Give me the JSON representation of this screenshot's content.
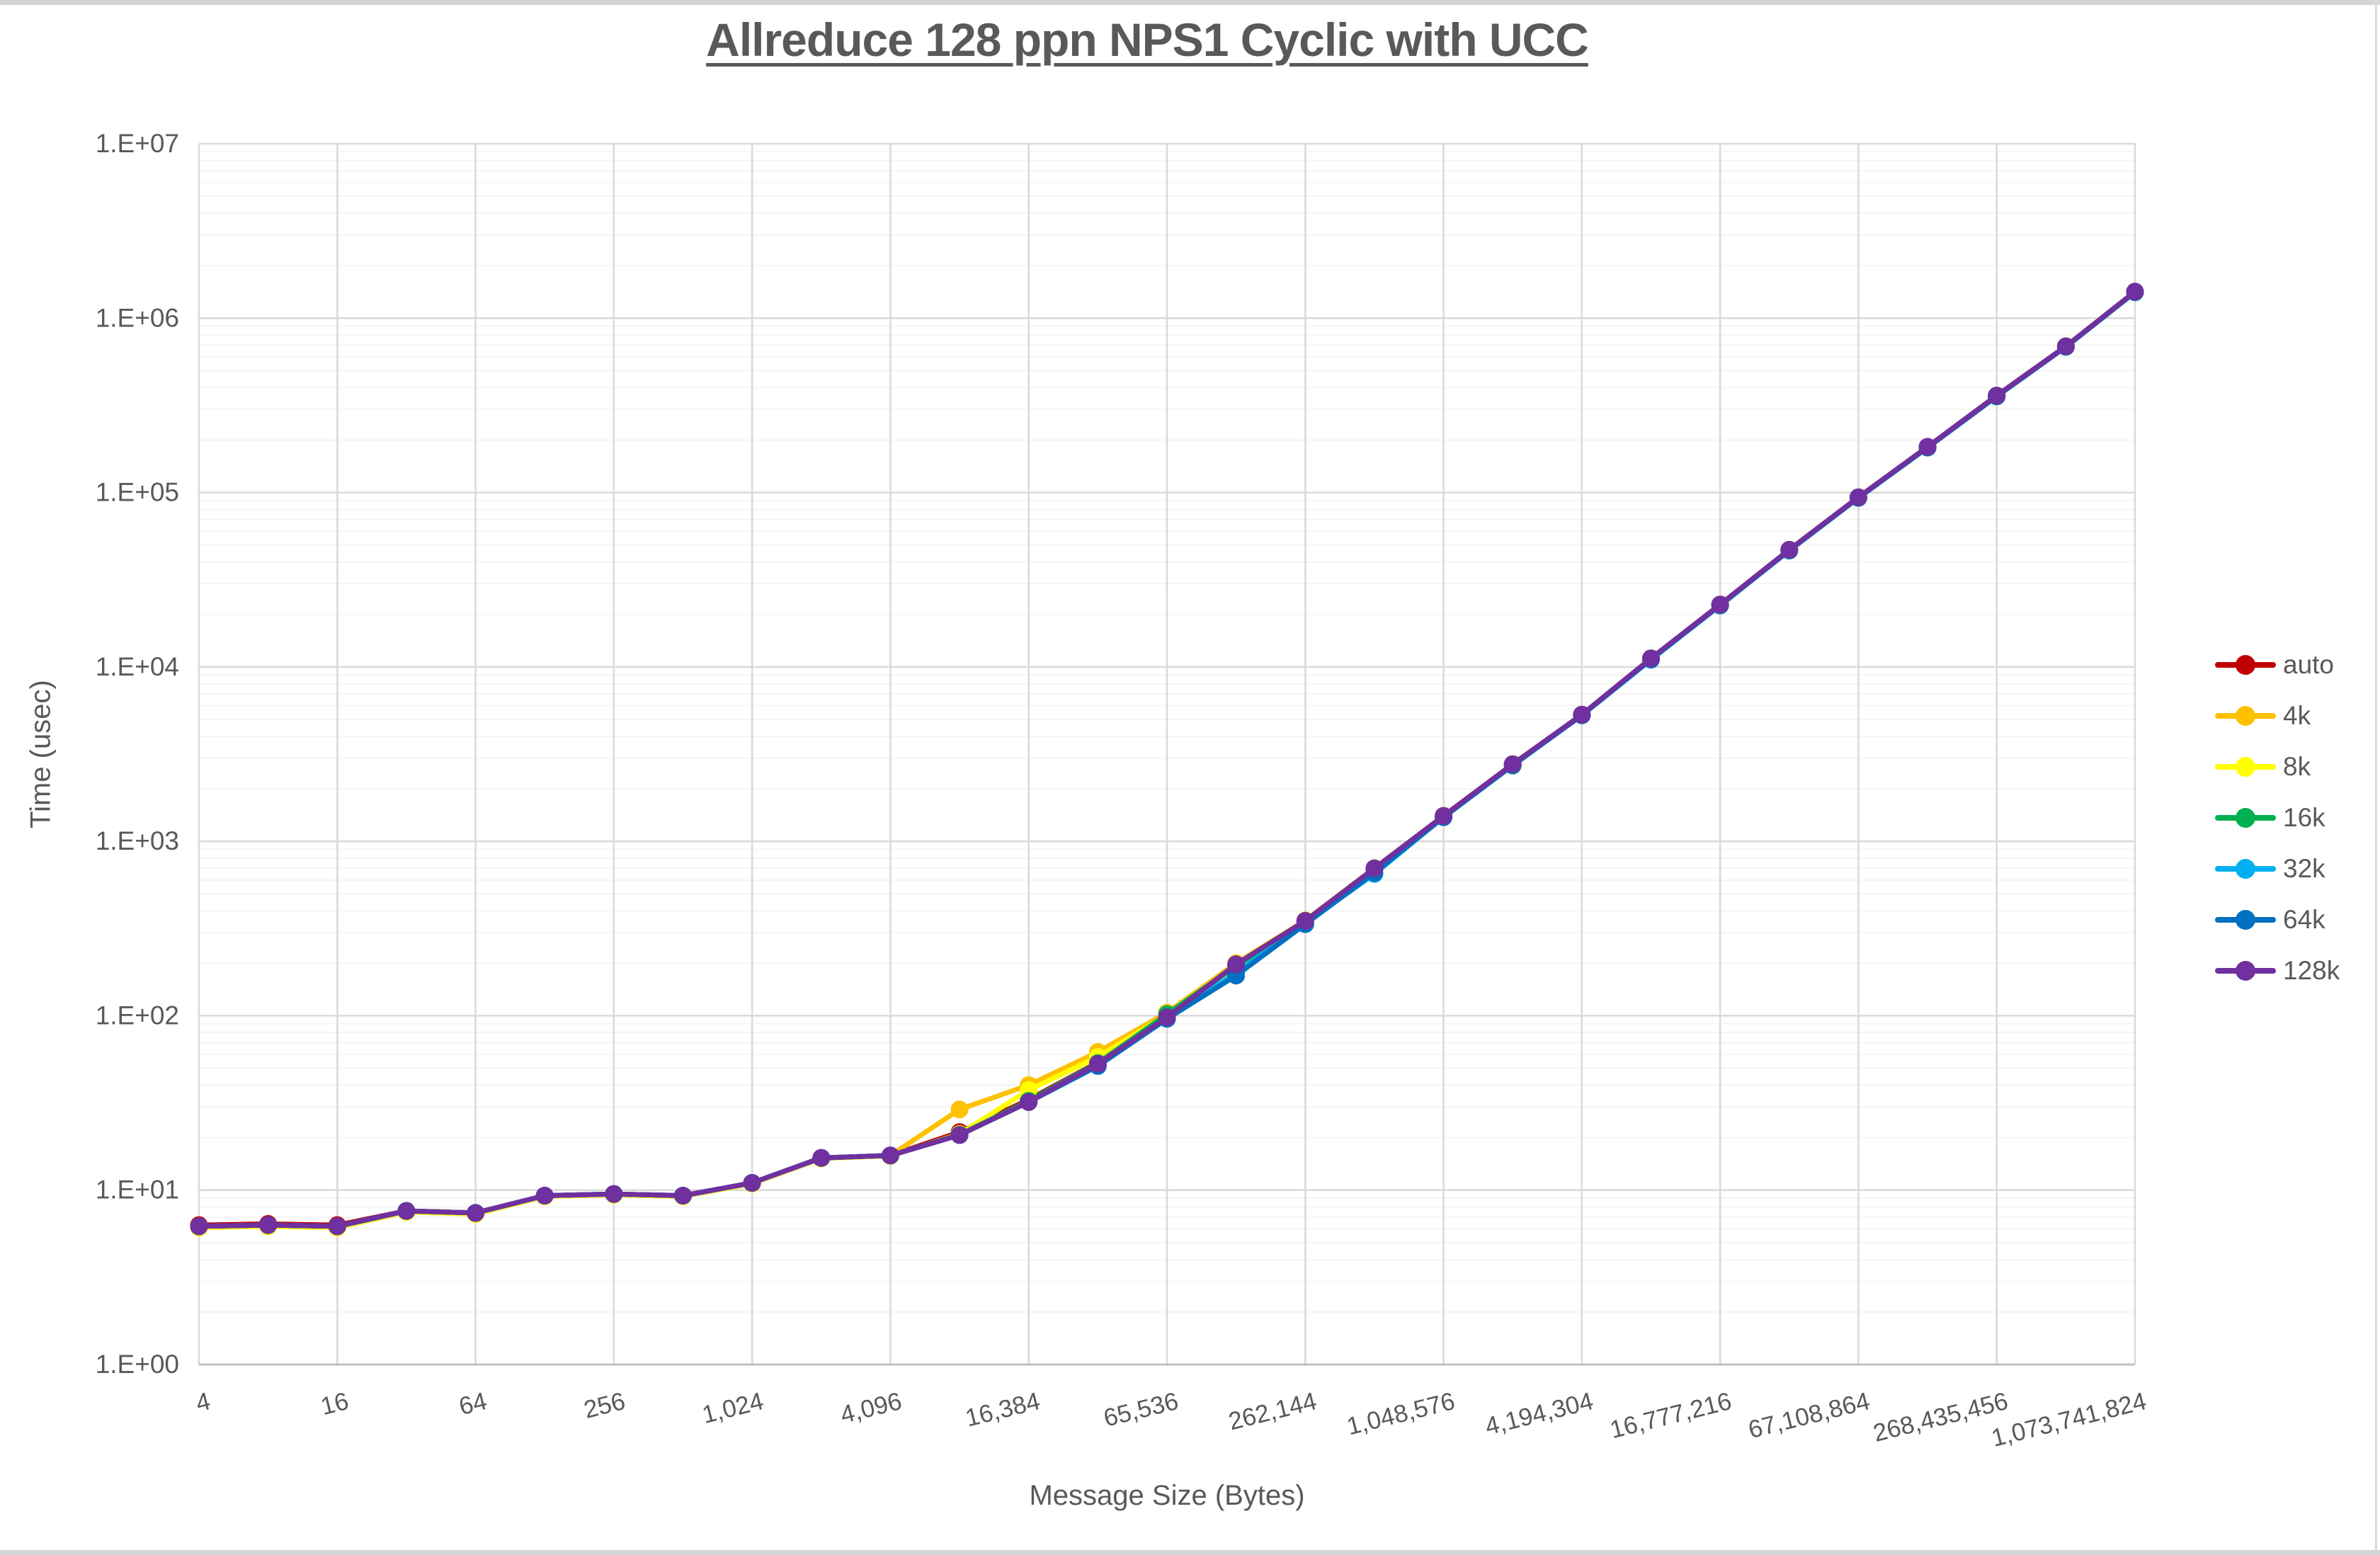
{
  "window": {
    "background": "#ffffff",
    "chrome_color": "#d4d4d4"
  },
  "title": "Allreduce 128 ppn NPS1 Cyclic with UCC",
  "axes": {
    "x_label": "Message Size (Bytes)",
    "y_label": "Time (usec)",
    "y_tick_labels": [
      "1.E+00",
      "1.E+01",
      "1.E+02",
      "1.E+03",
      "1.E+04",
      "1.E+05",
      "1.E+06",
      "1.E+07"
    ],
    "x_tick_labels": [
      "4",
      "16",
      "64",
      "256",
      "1,024",
      "4,096",
      "16,384",
      "65,536",
      "262,144",
      "1,048,576",
      "4,194,304",
      "16,777,216",
      "67,108,864",
      "268,435,456",
      "1,073,741,824"
    ]
  },
  "style": {
    "text_color": "#595959",
    "grid_major_color": "#d9d9d9",
    "grid_minor_color": "#f2f2f2",
    "axis_line_color": "#bfbfbf"
  },
  "chart_data": {
    "type": "line",
    "title": "Allreduce 128 ppn NPS1 Cyclic with UCC",
    "xlabel": "Message Size (Bytes)",
    "ylabel": "Time (usec)",
    "x_scale": "log2",
    "y_scale": "log10",
    "xlim": [
      4,
      1073741824
    ],
    "ylim": [
      1,
      10000000
    ],
    "grid": true,
    "legend_position": "right",
    "x": [
      4,
      8,
      16,
      32,
      64,
      128,
      256,
      512,
      1024,
      2048,
      4096,
      8192,
      16384,
      32768,
      65536,
      131072,
      262144,
      524288,
      1048576,
      2097152,
      4194304,
      8388608,
      16777216,
      33554432,
      67108864,
      134217728,
      268435456,
      536870912,
      1073741824
    ],
    "series": [
      {
        "name": "auto",
        "color": "#C00000",
        "values": [
          6.3,
          6.4,
          6.3,
          7.6,
          7.4,
          9.3,
          9.5,
          9.3,
          11.0,
          15.3,
          15.8,
          21.5,
          33,
          54,
          99,
          195,
          348,
          695,
          1395,
          2760,
          5320,
          11150,
          22700,
          46800,
          93500,
          182000,
          358000,
          688000,
          1415000
        ]
      },
      {
        "name": "4k",
        "color": "#FFC000",
        "values": [
          6.1,
          6.2,
          6.1,
          7.5,
          7.3,
          9.2,
          9.4,
          9.2,
          10.9,
          15.2,
          15.8,
          29,
          40,
          62,
          104,
          200,
          352,
          702,
          1402,
          2772,
          5330,
          11200,
          22800,
          47000,
          94000,
          183000,
          360000,
          690000,
          1420000
        ]
      },
      {
        "name": "8k",
        "color": "#FFFF00",
        "values": [
          6.1,
          6.2,
          6.1,
          7.5,
          7.3,
          9.2,
          9.4,
          9.2,
          10.9,
          15.2,
          15.7,
          21,
          37.5,
          58,
          101,
          192,
          346,
          690,
          1390,
          2750,
          5310,
          11100,
          22600,
          46700,
          93300,
          181500,
          357000,
          686000,
          1410000
        ]
      },
      {
        "name": "16k",
        "color": "#00B050",
        "values": [
          6.2,
          6.3,
          6.2,
          7.6,
          7.4,
          9.3,
          9.5,
          9.3,
          11.0,
          15.3,
          15.8,
          20.8,
          32.5,
          53.5,
          102,
          193,
          347,
          692,
          1385,
          2720,
          5300,
          11080,
          22500,
          46500,
          93200,
          181000,
          356000,
          685000,
          1408000
        ]
      },
      {
        "name": "32k",
        "color": "#00B0F0",
        "values": [
          6.2,
          6.3,
          6.2,
          7.6,
          7.4,
          9.3,
          9.5,
          9.3,
          11.0,
          15.3,
          15.8,
          20.7,
          32,
          52.5,
          97,
          176,
          340,
          650,
          1380,
          2740,
          5290,
          11000,
          22600,
          46600,
          93400,
          181800,
          357500,
          687000,
          1412000
        ]
      },
      {
        "name": "64k",
        "color": "#0070C0",
        "values": [
          6.2,
          6.3,
          6.2,
          7.6,
          7.4,
          9.3,
          9.5,
          9.3,
          11.0,
          15.3,
          15.8,
          20.7,
          32,
          51.5,
          96,
          170,
          335,
          660,
          1375,
          2730,
          5280,
          11050,
          22550,
          46550,
          93300,
          181200,
          356500,
          685500,
          1409000
        ]
      },
      {
        "name": "128k",
        "color": "#7030A0",
        "values": [
          6.2,
          6.3,
          6.2,
          7.6,
          7.4,
          9.3,
          9.5,
          9.3,
          11.0,
          15.3,
          15.8,
          20.7,
          32,
          53,
          98,
          197,
          350,
          700,
          1400,
          2770,
          5330,
          11200,
          22800,
          47000,
          94000,
          183000,
          360000,
          690000,
          1420000
        ]
      }
    ]
  }
}
